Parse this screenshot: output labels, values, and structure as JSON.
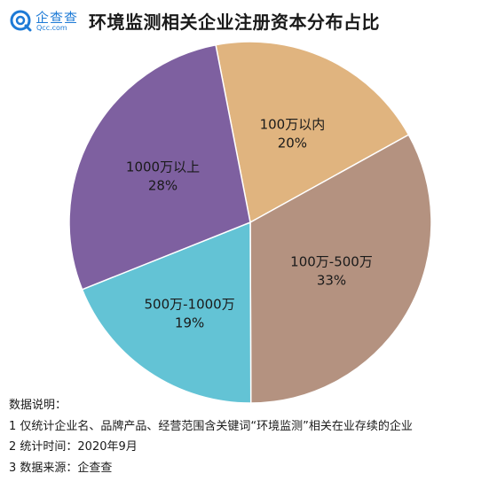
{
  "header": {
    "logo_text": "企查查",
    "logo_sub": "Qcc.com",
    "title": "环境监测相关企业注册资本分布占比"
  },
  "chart_data": {
    "type": "pie",
    "title": "环境监测相关企业注册资本分布占比",
    "slices": [
      {
        "label": "100万以内",
        "value": 20,
        "pct_label": "20%",
        "color": "#e0b47f"
      },
      {
        "label": "100万-500万",
        "value": 33,
        "pct_label": "33%",
        "color": "#b49280"
      },
      {
        "label": "500万-1000万",
        "value": 19,
        "pct_label": "19%",
        "color": "#63c3d5"
      },
      {
        "label": "1000万以上",
        "value": 28,
        "pct_label": "28%",
        "color": "#7e60a0"
      }
    ]
  },
  "notes": {
    "heading": "数据说明：",
    "items": [
      "1 仅统计企业名、品牌产品、经营范围含关键词“环境监测”相关在业存续的企业",
      "2 统计时间：2020年9月",
      "3 数据来源：企查查"
    ]
  },
  "colors": {
    "logo_blue": "#1d7ad6",
    "slice_stroke": "#ffffff"
  }
}
